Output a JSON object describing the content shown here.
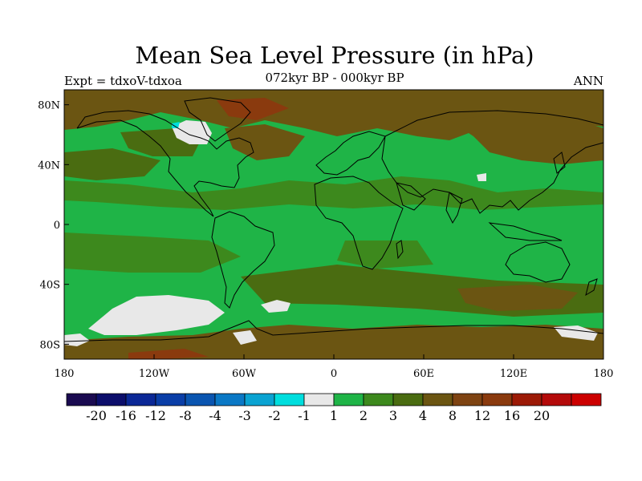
{
  "header": {
    "title": "Mean Sea Level Pressure (in hPa)",
    "subtitle": "072kyr BP - 000kyr BP",
    "left_label": "Expt = tdxoV-tdxoa",
    "right_label": "ANN"
  },
  "map": {
    "projection": "cylindrical-equidistant",
    "lon_range": [
      -180,
      180
    ],
    "lat_range": [
      -90,
      90
    ],
    "lat_ticks": [
      {
        "value": 80,
        "label": "80N"
      },
      {
        "value": 40,
        "label": "40N"
      },
      {
        "value": 0,
        "label": "0"
      },
      {
        "value": -40,
        "label": "40S"
      },
      {
        "value": -80,
        "label": "80S"
      }
    ],
    "lon_ticks": [
      {
        "value": -180,
        "label": "180"
      },
      {
        "value": -120,
        "label": "120W"
      },
      {
        "value": -60,
        "label": "60W"
      },
      {
        "value": 0,
        "label": "0"
      },
      {
        "value": 60,
        "label": "60E"
      },
      {
        "value": 120,
        "label": "120E"
      },
      {
        "value": 180,
        "label": "180"
      }
    ],
    "field_colors": {
      "band_1_2": "#1fb447",
      "band_2_3": "#3d891d",
      "band_3_4": "#4a6c11",
      "band_4_8": "#6b5512",
      "band_8_12": "#8a3a0e",
      "band_neg1_1": "#e8e8e8",
      "band_neg2_neg1": "#00dede"
    },
    "coastline_color": "#000000"
  },
  "colorbar": {
    "colors": [
      "#1a0a50",
      "#0c0e6b",
      "#0b2896",
      "#0a3ea7",
      "#0a55b0",
      "#0a78c5",
      "#0aa3d2",
      "#00dede",
      "#e8e8e8",
      "#1fb447",
      "#3d891d",
      "#4a6c11",
      "#6b5512",
      "#7e4312",
      "#8a3a0e",
      "#9c1a06",
      "#b40a0a",
      "#cc0000"
    ],
    "labels": [
      "-20",
      "-16",
      "-12",
      "-8",
      "-4",
      "-3",
      "-2",
      "-1",
      "1",
      "2",
      "3",
      "4",
      "8",
      "12",
      "16",
      "20"
    ]
  }
}
